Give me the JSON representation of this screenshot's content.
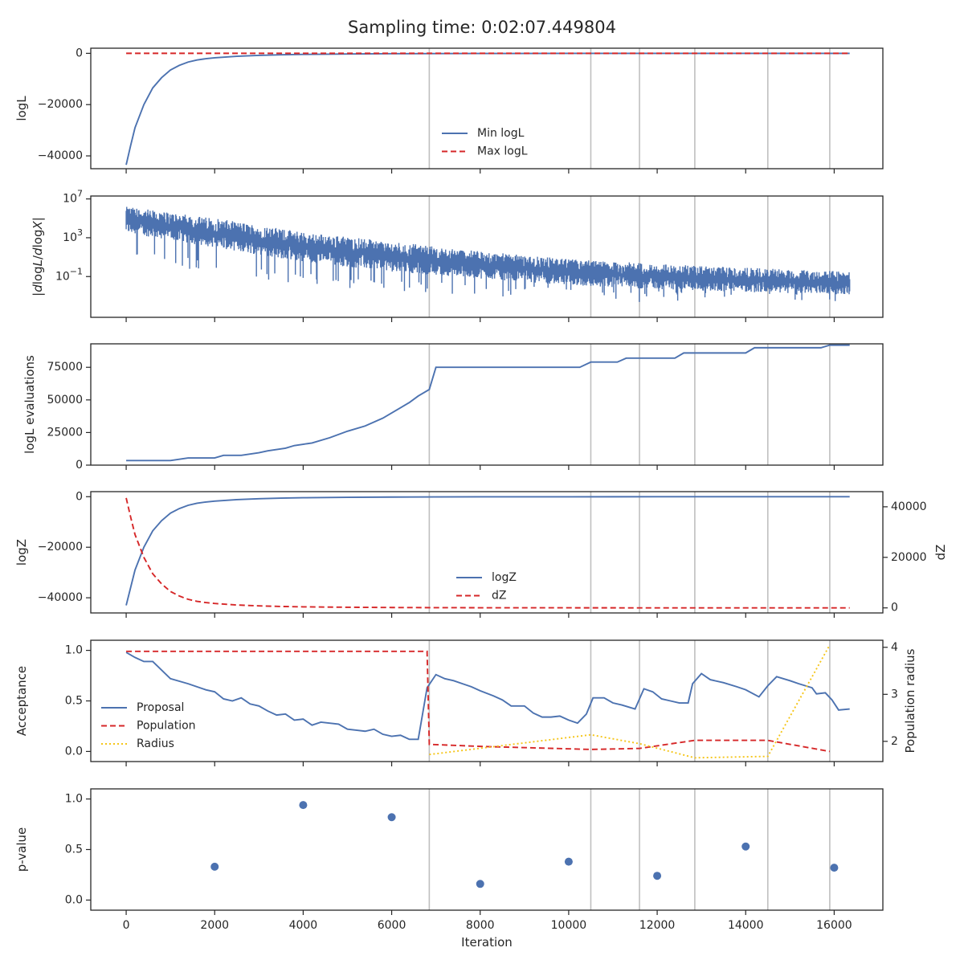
{
  "title": "Sampling time: 0:02:07.449804",
  "colors": {
    "blue": "#4c72b0",
    "red": "#d62728",
    "gold": "#f5c518",
    "vline": "#bfbfbf"
  },
  "chart_data": {
    "type": "line",
    "shared_x": {
      "label": "Iteration",
      "range": [
        -800,
        17100
      ],
      "ticks": [
        0,
        2000,
        4000,
        6000,
        8000,
        10000,
        12000,
        14000,
        16000
      ],
      "ticklabels": [
        "0",
        "2000",
        "4000",
        "6000",
        "8000",
        "10000",
        "12000",
        "14000",
        "16000"
      ]
    },
    "vertical_markers": [
      6850,
      10500,
      11600,
      12850,
      14500,
      15900
    ],
    "panels": [
      {
        "id": "logL",
        "ylabel": "logL",
        "ylim": [
          -45000,
          2000
        ],
        "yticks": [
          0,
          -20000,
          -40000
        ],
        "yticklabels": [
          "0",
          "−20000",
          "−40000"
        ],
        "legend": {
          "placement": "lower-center",
          "entries": [
            "Min logL",
            "Max logL"
          ]
        },
        "series": [
          {
            "name": "Min logL",
            "color": "blue",
            "style": "solid",
            "x": [
              0,
              100,
              200,
              400,
              600,
              800,
              1000,
              1200,
              1400,
              1600,
              1800,
              2000,
              2500,
              3000,
              3500,
              4000,
              5000,
              6000,
              7000,
              8000,
              10000,
              12000,
              14000,
              16350
            ],
            "y": [
              -43500,
              -36000,
              -29000,
              -20000,
              -13500,
              -9500,
              -6500,
              -4700,
              -3400,
              -2600,
              -2100,
              -1750,
              -1150,
              -800,
              -560,
              -420,
              -250,
              -150,
              -90,
              -60,
              -30,
              -15,
              -8,
              -3
            ]
          },
          {
            "name": "Max logL",
            "color": "red",
            "style": "dashed",
            "x": [
              0,
              16350
            ],
            "y": [
              0,
              0
            ]
          }
        ]
      },
      {
        "id": "dlogL",
        "ylabel": "|dlogL/dlogX|",
        "yscale": "log",
        "ylim_log10": [
          -5.2,
          7.3
        ],
        "yticks_log10": [
          7,
          3,
          -1
        ],
        "yticklabels": [
          "10^7",
          "10^3",
          "10^-1"
        ],
        "series": [
          {
            "name": "",
            "color": "blue",
            "style": "noisy-fill",
            "x": [
              0,
              2000,
              4000,
              6000,
              8000,
              10000,
              12000,
              14000,
              16350
            ],
            "upper_log10": [
              6.2,
              5.0,
              3.6,
              2.6,
              1.6,
              0.8,
              0.3,
              -0.1,
              -0.5
            ],
            "lower_log10": [
              3.5,
              2.0,
              0.5,
              -0.5,
              -1.2,
              -1.9,
              -2.3,
              -2.6,
              -2.8
            ],
            "min_spikes_log10": [
              1.2,
              -0.8,
              -1.8,
              -2.6,
              -3.0,
              -3.4,
              -3.7,
              -3.4,
              -3.6
            ]
          }
        ]
      },
      {
        "id": "evals",
        "ylabel": "logL evaluations",
        "ylim": [
          0,
          93000
        ],
        "yticks": [
          0,
          25000,
          50000,
          75000
        ],
        "yticklabels": [
          "0",
          "25000",
          "50000",
          "75000"
        ],
        "series": [
          {
            "name": "",
            "color": "blue",
            "style": "solid",
            "x": [
              0,
              1000,
              1400,
              1800,
              2000,
              2200,
              2600,
              3000,
              3200,
              3600,
              3800,
              4000,
              4200,
              4600,
              5000,
              5400,
              5800,
              6200,
              6400,
              6600,
              6850,
              7000,
              10250,
              10500,
              11100,
              11300,
              12400,
              12600,
              14000,
              14200,
              15700,
              15900,
              16350
            ],
            "y": [
              3500,
              3500,
              5500,
              5500,
              5500,
              7500,
              7500,
              9500,
              11000,
              13000,
              15000,
              16000,
              17000,
              21000,
              26000,
              30000,
              36000,
              44000,
              48000,
              53000,
              58000,
              75000,
              75000,
              79000,
              79000,
              82000,
              82000,
              86000,
              86000,
              90000,
              90000,
              92000,
              92000
            ]
          }
        ]
      },
      {
        "id": "logZ",
        "ylabel": "logZ",
        "ylim": [
          -46000,
          2000
        ],
        "yticks": [
          0,
          -20000,
          -40000
        ],
        "yticklabels": [
          "0",
          "−20000",
          "−40000"
        ],
        "y2label": "dZ",
        "y2lim": [
          -2000,
          46000
        ],
        "y2ticks": [
          0,
          20000,
          40000
        ],
        "y2ticklabels": [
          "0",
          "20000",
          "40000"
        ],
        "legend": {
          "placement": "lower-center",
          "entries": [
            "logZ",
            "dZ"
          ]
        },
        "series": [
          {
            "name": "logZ",
            "color": "blue",
            "style": "solid",
            "axis": "left",
            "x": [
              0,
              100,
              200,
              400,
              600,
              800,
              1000,
              1200,
              1400,
              1600,
              1800,
              2000,
              2500,
              3000,
              3500,
              4000,
              5000,
              6000,
              7000,
              8000,
              10000,
              12000,
              14000,
              16350
            ],
            "y": [
              -43000,
              -36000,
              -29000,
              -20000,
              -13500,
              -9500,
              -6500,
              -4700,
              -3400,
              -2600,
              -2100,
              -1750,
              -1150,
              -800,
              -560,
              -420,
              -250,
              -150,
              -90,
              -60,
              -30,
              -15,
              -8,
              -3
            ]
          },
          {
            "name": "dZ",
            "color": "red",
            "style": "dashed",
            "axis": "right",
            "x": [
              0,
              100,
              200,
              400,
              600,
              800,
              1000,
              1200,
              1400,
              1600,
              1800,
              2000,
              2500,
              3000,
              3500,
              4000,
              5000,
              6000,
              7000,
              8000,
              10000,
              12000,
              14000,
              16350
            ],
            "y": [
              43500,
              36000,
              29000,
              20000,
              13500,
              9500,
              6500,
              4700,
              3400,
              2600,
              2100,
              1750,
              1150,
              800,
              560,
              420,
              250,
              150,
              90,
              60,
              30,
              15,
              8,
              3
            ]
          }
        ]
      },
      {
        "id": "acceptance",
        "ylabel": "Acceptance",
        "ylim": [
          -0.1,
          1.1
        ],
        "yticks": [
          0.0,
          0.5,
          1.0
        ],
        "yticklabels": [
          "0.0",
          "0.5",
          "1.0"
        ],
        "y2label": "Population radius",
        "y2lim": [
          1.57,
          4.15
        ],
        "y2ticks": [
          2,
          3,
          4
        ],
        "y2ticklabels": [
          "2",
          "3",
          "4"
        ],
        "legend": {
          "placement": "center-left",
          "entries": [
            "Proposal",
            "Population",
            "Radius"
          ]
        },
        "series": [
          {
            "name": "Proposal",
            "color": "blue",
            "style": "solid",
            "axis": "left",
            "x": [
              0,
              200,
              400,
              600,
              1000,
              1400,
              1800,
              2000,
              2200,
              2400,
              2600,
              2800,
              3000,
              3200,
              3400,
              3600,
              3800,
              4000,
              4200,
              4400,
              4600,
              4800,
              5000,
              5200,
              5400,
              5600,
              5800,
              6000,
              6200,
              6400,
              6600,
              6800,
              7000,
              7200,
              7400,
              7600,
              7800,
              8000,
              8300,
              8500,
              8700,
              9000,
              9200,
              9400,
              9600,
              9800,
              10000,
              10200,
              10400,
              10550,
              10800,
              11000,
              11200,
              11500,
              11700,
              11900,
              12100,
              12300,
              12500,
              12700,
              12800,
              13000,
              13200,
              13500,
              13800,
              14000,
              14300,
              14500,
              14700,
              15000,
              15200,
              15500,
              15600,
              15800,
              15950,
              16100,
              16350
            ],
            "y": [
              0.98,
              0.93,
              0.89,
              0.89,
              0.72,
              0.67,
              0.61,
              0.59,
              0.52,
              0.5,
              0.53,
              0.47,
              0.45,
              0.4,
              0.36,
              0.37,
              0.31,
              0.32,
              0.26,
              0.29,
              0.28,
              0.27,
              0.22,
              0.21,
              0.2,
              0.22,
              0.17,
              0.15,
              0.16,
              0.12,
              0.12,
              0.63,
              0.76,
              0.72,
              0.7,
              0.67,
              0.64,
              0.6,
              0.55,
              0.51,
              0.45,
              0.45,
              0.38,
              0.34,
              0.34,
              0.35,
              0.31,
              0.28,
              0.37,
              0.53,
              0.53,
              0.48,
              0.46,
              0.42,
              0.62,
              0.59,
              0.52,
              0.5,
              0.48,
              0.48,
              0.67,
              0.77,
              0.71,
              0.68,
              0.64,
              0.61,
              0.54,
              0.65,
              0.74,
              0.7,
              0.67,
              0.63,
              0.57,
              0.58,
              0.51,
              0.41,
              0.42
            ]
          },
          {
            "name": "Population",
            "color": "red",
            "style": "dashed",
            "axis": "left",
            "x": [
              0,
              6800,
              6850,
              8000,
              10500,
              11600,
              12850,
              14500,
              15900
            ],
            "y": [
              0.99,
              0.99,
              0.07,
              0.05,
              0.02,
              0.03,
              0.11,
              0.11,
              0.0
            ]
          },
          {
            "name": "Radius",
            "color": "gold",
            "style": "dotted",
            "axis": "right",
            "x": [
              6850,
              10500,
              11600,
              12850,
              14500,
              15900
            ],
            "y": [
              1.72,
              2.14,
              1.95,
              1.65,
              1.68,
              4.05
            ]
          }
        ]
      },
      {
        "id": "pvalue",
        "ylabel": "p-value",
        "ylim": [
          -0.1,
          1.1
        ],
        "yticks": [
          0.0,
          0.5,
          1.0
        ],
        "yticklabels": [
          "0.0",
          "0.5",
          "1.0"
        ],
        "series": [
          {
            "name": "",
            "color": "blue",
            "style": "scatter",
            "x": [
              2000,
              4000,
              6000,
              8000,
              10000,
              12000,
              14000,
              16000
            ],
            "y": [
              0.33,
              0.94,
              0.82,
              0.16,
              0.38,
              0.24,
              0.53,
              0.32
            ]
          }
        ]
      }
    ]
  }
}
